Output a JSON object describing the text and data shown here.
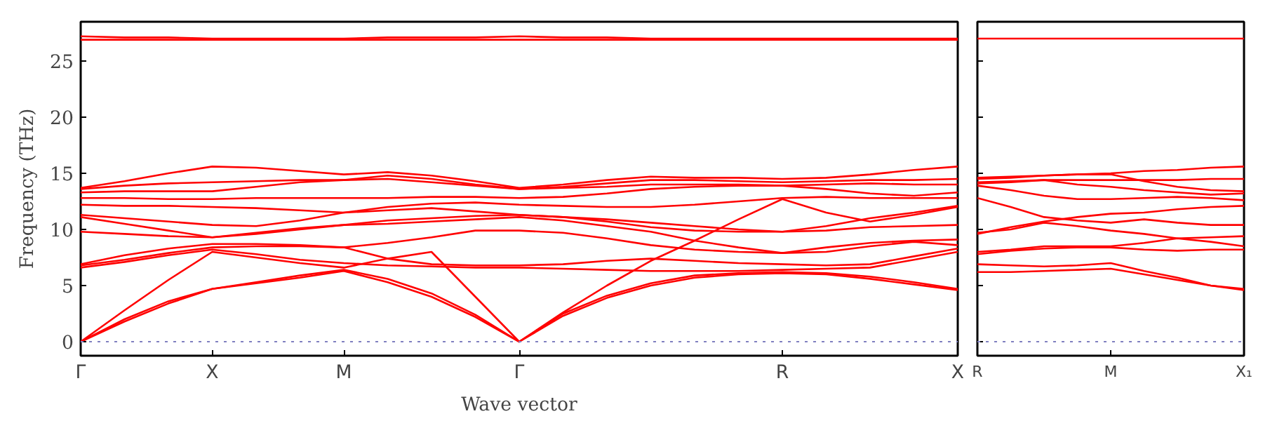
{
  "chart_data": [
    {
      "type": "line",
      "xlabel": "Wave vector",
      "ylabel": "Frequency (THz)",
      "categories": [
        "Γ",
        null,
        null,
        "X",
        null,
        null,
        "M",
        null,
        null,
        null,
        "Γ",
        null,
        null,
        null,
        null,
        null,
        "R",
        null,
        null,
        null,
        "X"
      ],
      "ylim": [
        -1.25,
        28.5
      ],
      "yticks": [
        0,
        5,
        10,
        15,
        20,
        25
      ],
      "grid": false,
      "line_style": "solid",
      "ref_lines": [
        {
          "axis": "y",
          "value": 0,
          "color": "#8080c0",
          "line_style": "dotted"
        }
      ],
      "series": [
        {
          "color": "#ff0000",
          "values": [
            0,
            1.8,
            3.4,
            4.7,
            5.2,
            5.7,
            6.3,
            5.3,
            4.0,
            2.2,
            0,
            2.3,
            3.9,
            5.0,
            5.7,
            6.0,
            6.1,
            6.0,
            5.6,
            5.1,
            4.6
          ]
        },
        {
          "color": "#ff0000",
          "values": [
            0,
            2.0,
            3.6,
            4.7,
            5.3,
            5.9,
            6.4,
            5.6,
            4.3,
            2.4,
            0,
            2.5,
            4.1,
            5.2,
            5.9,
            6.1,
            6.2,
            6.1,
            5.8,
            5.3,
            4.7
          ]
        },
        {
          "color": "#ff0000",
          "values": [
            0,
            2.8,
            5.5,
            8.0,
            7.5,
            7.0,
            6.6,
            7.4,
            8.0,
            4.0,
            0,
            2.6,
            5.0,
            7.2,
            9.0,
            10.9,
            12.7,
            11.5,
            10.7,
            11.3,
            12.0
          ]
        },
        {
          "color": "#ff0000",
          "values": [
            6.6,
            7.1,
            7.7,
            8.2,
            7.8,
            7.3,
            7.0,
            6.8,
            6.7,
            6.6,
            6.6,
            6.5,
            6.4,
            6.3,
            6.3,
            6.3,
            6.4,
            6.5,
            6.6,
            7.3,
            8.0
          ]
        },
        {
          "color": "#ff0000",
          "values": [
            6.8,
            7.3,
            7.9,
            8.4,
            8.5,
            8.5,
            8.4,
            7.4,
            6.9,
            6.8,
            6.8,
            6.9,
            7.2,
            7.4,
            7.2,
            7.0,
            6.9,
            6.8,
            6.9,
            7.6,
            8.3
          ]
        },
        {
          "color": "#ff0000",
          "values": [
            6.9,
            7.7,
            8.3,
            8.7,
            8.7,
            8.6,
            8.4,
            8.8,
            9.3,
            9.9,
            9.9,
            9.7,
            9.2,
            8.6,
            8.2,
            8.0,
            7.9,
            8.0,
            8.5,
            8.9,
            8.6
          ]
        },
        {
          "color": "#ff0000",
          "values": [
            9.8,
            9.6,
            9.4,
            9.3,
            9.7,
            10.1,
            10.4,
            10.8,
            11.0,
            11.2,
            11.3,
            11.1,
            10.7,
            10.2,
            9.9,
            9.8,
            9.8,
            9.9,
            10.2,
            10.3,
            10.4
          ]
        },
        {
          "color": "#ff0000",
          "values": [
            11.1,
            10.5,
            9.9,
            9.3,
            9.6,
            10.0,
            10.4,
            10.5,
            10.7,
            10.9,
            11.1,
            10.8,
            10.3,
            9.8,
            9.0,
            8.4,
            7.9,
            8.4,
            8.8,
            9.0,
            9.1
          ]
        },
        {
          "color": "#ff0000",
          "values": [
            11.3,
            11.0,
            10.7,
            10.4,
            10.3,
            10.8,
            11.5,
            11.7,
            11.9,
            11.6,
            11.3,
            11.1,
            10.9,
            10.6,
            10.3,
            10.0,
            9.8,
            10.3,
            11.0,
            11.5,
            12.1
          ]
        },
        {
          "color": "#ff0000",
          "values": [
            12.2,
            12.1,
            12.1,
            12.0,
            11.9,
            11.7,
            11.5,
            12.0,
            12.3,
            12.4,
            12.2,
            12.1,
            12.0,
            12.0,
            12.2,
            12.5,
            12.8,
            12.9,
            12.8,
            12.8,
            12.8
          ]
        },
        {
          "color": "#ff0000",
          "values": [
            12.8,
            12.8,
            12.7,
            12.7,
            12.8,
            12.8,
            12.8,
            12.8,
            12.9,
            12.9,
            12.8,
            12.9,
            13.2,
            13.6,
            13.8,
            13.9,
            13.9,
            13.6,
            13.2,
            13.0,
            13.3
          ]
        },
        {
          "color": "#ff0000",
          "values": [
            13.3,
            13.4,
            13.4,
            13.4,
            13.8,
            14.2,
            14.4,
            14.5,
            14.2,
            13.9,
            13.6,
            13.7,
            13.8,
            14.0,
            14.0,
            14.0,
            13.9,
            14.0,
            14.1,
            14.0,
            14.0
          ]
        },
        {
          "color": "#ff0000",
          "values": [
            13.6,
            13.9,
            14.1,
            14.2,
            14.3,
            14.4,
            14.4,
            14.8,
            14.5,
            14.0,
            13.6,
            13.8,
            14.1,
            14.4,
            14.4,
            14.3,
            14.2,
            14.3,
            14.4,
            14.4,
            14.5
          ]
        },
        {
          "color": "#ff0000",
          "values": [
            13.7,
            14.3,
            15.0,
            15.6,
            15.5,
            15.2,
            14.9,
            15.1,
            14.8,
            14.3,
            13.7,
            14.0,
            14.4,
            14.7,
            14.6,
            14.6,
            14.5,
            14.6,
            14.9,
            15.3,
            15.6
          ]
        },
        {
          "color": "#ff0000",
          "values": [
            27.2,
            27.1,
            27.1,
            27.0,
            27.0,
            27.0,
            27.0,
            27.1,
            27.1,
            27.1,
            27.2,
            27.1,
            27.1,
            27.0,
            27.0,
            27.0,
            27.0,
            27.0,
            27.0,
            27.0,
            27.0
          ]
        },
        {
          "color": "#ff0000",
          "values": [
            26.9,
            26.9,
            26.9,
            26.9,
            26.9,
            26.9,
            26.9,
            26.9,
            26.9,
            26.9,
            26.9,
            26.9,
            26.9,
            26.9,
            26.9,
            26.9,
            26.9,
            26.9,
            26.9,
            26.9,
            26.9
          ]
        }
      ]
    },
    {
      "type": "line",
      "categories": [
        "R",
        null,
        null,
        null,
        "M",
        null,
        null,
        null,
        "X₁"
      ],
      "ylim": [
        -1.25,
        28.5
      ],
      "yticks": [
        {
          "value": 0,
          "label": null
        },
        {
          "value": 5,
          "label": null
        },
        {
          "value": 10,
          "label": null
        },
        {
          "value": 15,
          "label": null
        },
        {
          "value": 20,
          "label": null
        },
        {
          "value": 25,
          "label": null
        }
      ],
      "tick_labels": "x",
      "grid": false,
      "line_style": "solid",
      "ref_lines": [
        {
          "axis": "y",
          "value": 0,
          "color": "#8080c0",
          "line_style": "dotted"
        }
      ],
      "series": [
        {
          "color": "#ff0000",
          "values": [
            6.2,
            6.2,
            6.3,
            6.4,
            6.5,
            6.0,
            5.5,
            5.0,
            4.6
          ]
        },
        {
          "color": "#ff0000",
          "values": [
            6.9,
            6.8,
            6.7,
            6.8,
            7.0,
            6.3,
            5.7,
            5.0,
            4.7
          ]
        },
        {
          "color": "#ff0000",
          "values": [
            7.8,
            8.1,
            8.3,
            8.4,
            8.4,
            8.2,
            8.1,
            8.2,
            8.2
          ]
        },
        {
          "color": "#ff0000",
          "values": [
            8.0,
            8.2,
            8.5,
            8.5,
            8.5,
            8.8,
            9.2,
            8.9,
            8.5
          ]
        },
        {
          "color": "#ff0000",
          "values": [
            9.7,
            10.0,
            10.6,
            10.3,
            9.9,
            9.6,
            9.2,
            9.3,
            9.4
          ]
        },
        {
          "color": "#ff0000",
          "values": [
            12.8,
            12.0,
            11.1,
            10.8,
            10.6,
            10.9,
            10.6,
            10.4,
            10.4
          ]
        },
        {
          "color": "#ff0000",
          "values": [
            9.6,
            10.2,
            10.7,
            11.1,
            11.4,
            11.5,
            11.8,
            12.0,
            12.1
          ]
        },
        {
          "color": "#ff0000",
          "values": [
            13.9,
            13.5,
            13.0,
            12.7,
            12.7,
            12.8,
            12.9,
            12.8,
            12.6
          ]
        },
        {
          "color": "#ff0000",
          "values": [
            14.1,
            14.2,
            14.4,
            14.0,
            13.8,
            13.5,
            13.3,
            13.1,
            13.2
          ]
        },
        {
          "color": "#ff0000",
          "values": [
            14.5,
            14.6,
            14.8,
            14.9,
            14.9,
            14.3,
            13.8,
            13.5,
            13.4
          ]
        },
        {
          "color": "#ff0000",
          "values": [
            14.6,
            14.7,
            14.8,
            14.9,
            15.0,
            15.2,
            15.3,
            15.5,
            15.6
          ]
        },
        {
          "color": "#ff0000",
          "values": [
            14.2,
            14.3,
            14.4,
            14.4,
            14.4,
            14.4,
            14.4,
            14.5,
            14.5
          ]
        },
        {
          "color": "#ff0000",
          "values": [
            27.0,
            27.0,
            27.0,
            27.0,
            27.0,
            27.0,
            27.0,
            27.0,
            27.0
          ]
        }
      ]
    }
  ]
}
